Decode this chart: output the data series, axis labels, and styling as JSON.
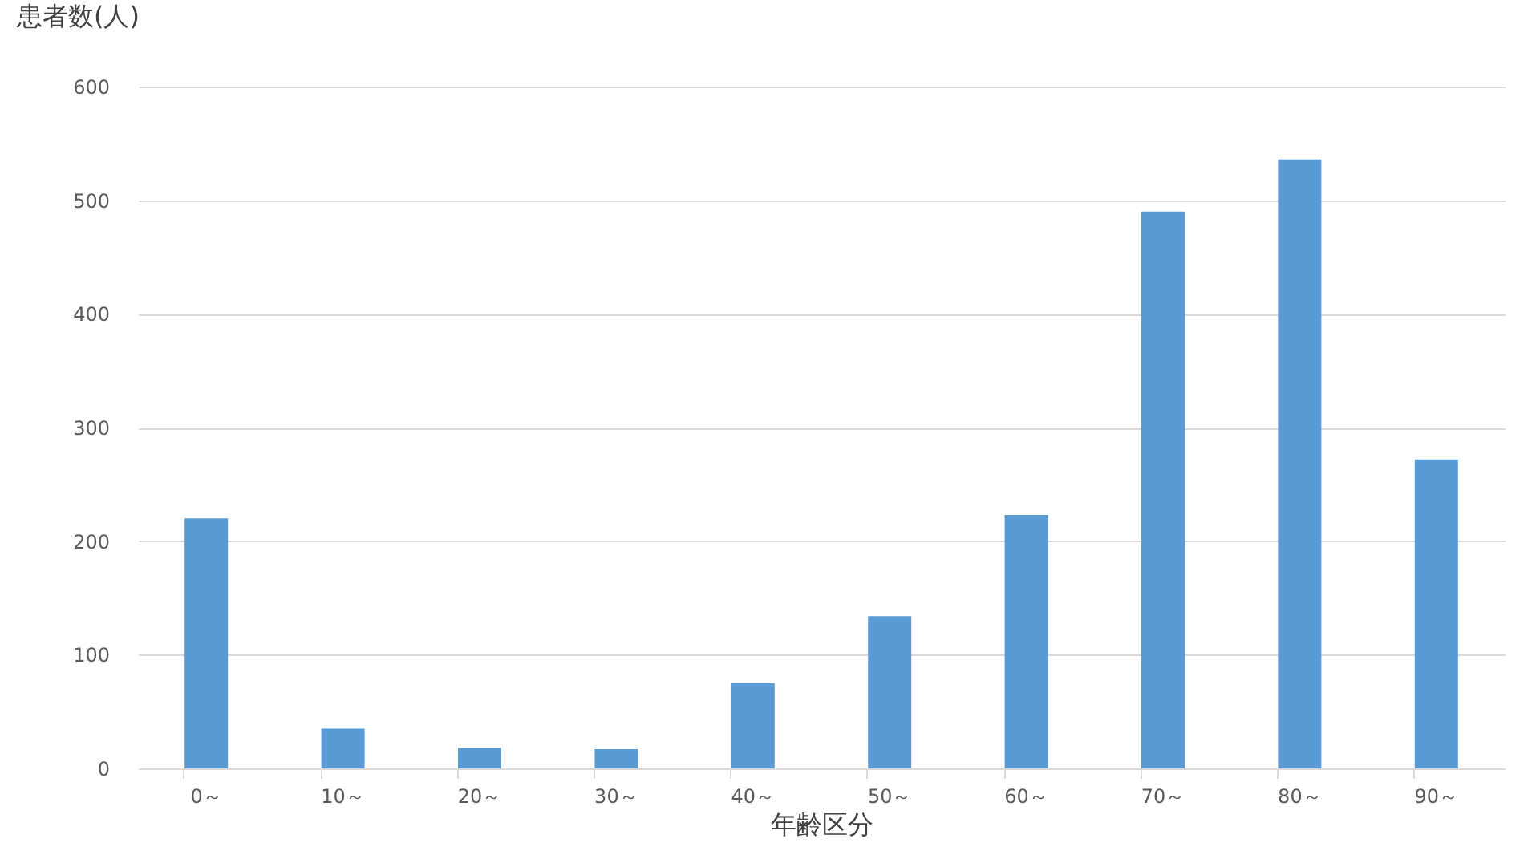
{
  "chart_data": {
    "type": "bar",
    "xlabel": "年齢区分",
    "ylabel": "患者数(人)",
    "categories": [
      "0～",
      "10～",
      "20～",
      "30～",
      "40～",
      "50～",
      "60～",
      "70～",
      "80～",
      "90～"
    ],
    "values": [
      220,
      35,
      18,
      17,
      75,
      134,
      223,
      490,
      536,
      272
    ],
    "color": "#5b9bd5",
    "ylim": [
      0,
      600
    ],
    "yticks": [
      0,
      100,
      200,
      300,
      400,
      500,
      600
    ],
    "grid": "y"
  }
}
